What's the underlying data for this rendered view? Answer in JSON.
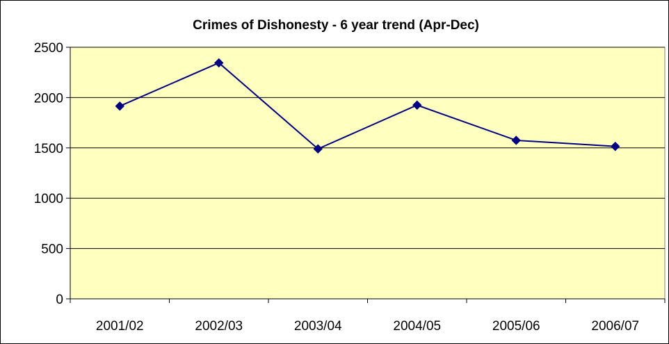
{
  "chart_data": {
    "type": "line",
    "title": "Crimes of Dishonesty - 6 year trend (Apr-Dec)",
    "xlabel": "",
    "ylabel": "",
    "categories": [
      "2001/02",
      "2002/03",
      "2003/04",
      "2004/05",
      "2005/06",
      "2006/07"
    ],
    "series": [
      {
        "values": [
          1915,
          2345,
          1490,
          1925,
          1575,
          1515
        ]
      }
    ],
    "ylim": [
      0,
      2500
    ],
    "yticks": [
      0,
      500,
      1000,
      1500,
      2000,
      2500
    ],
    "grid": true,
    "legend": "none",
    "colors": {
      "plot_background": "#FFFFC0",
      "series_line": "#000080",
      "series_marker": "#000080",
      "gridline": "#000000"
    }
  }
}
